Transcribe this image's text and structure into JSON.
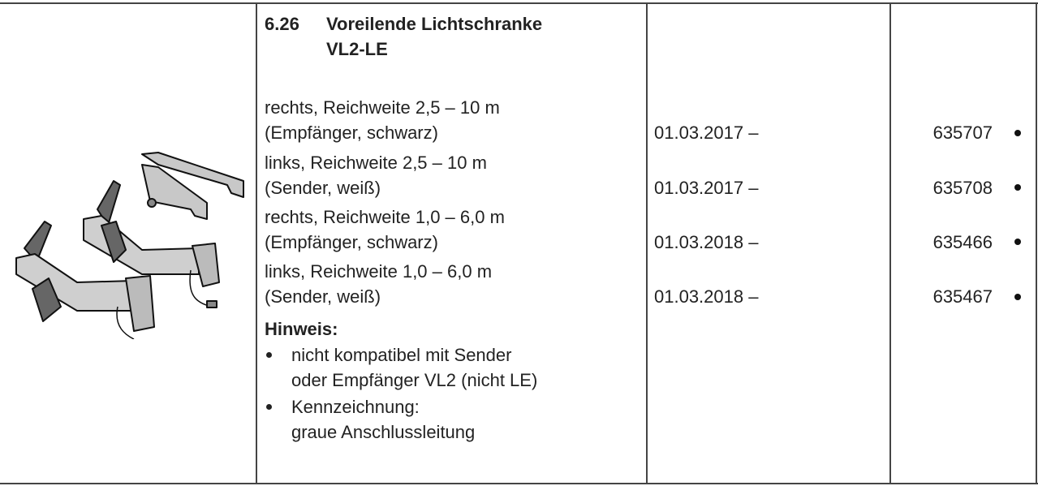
{
  "section": {
    "number": "6.26",
    "title_line1": "Voreilende Lichtschranke",
    "title_line2": "VL2-LE"
  },
  "items": [
    {
      "line1": "rechts, Reichweite 2,5 – 10 m",
      "line2": "(Empfänger, schwarz)",
      "date": "01.03.2017 –",
      "article": "635707"
    },
    {
      "line1": "links, Reichweite 2,5 – 10 m",
      "line2": "(Sender, weiß)",
      "date": "01.03.2017 –",
      "article": "635708"
    },
    {
      "line1": "rechts, Reichweite 1,0 – 6,0 m",
      "line2": "(Empfänger, schwarz)",
      "date": "01.03.2018 –",
      "article": "635466"
    },
    {
      "line1": "links, Reichweite 1,0 – 6,0 m",
      "line2": "(Sender, weiß)",
      "date": "01.03.2018 –",
      "article": "635467"
    }
  ],
  "note": {
    "heading": "Hinweis:",
    "bullets": [
      {
        "line1": "nicht kompatibel mit Sender",
        "line2": "oder Empfänger VL2 (nicht LE)"
      },
      {
        "line1": "Kennzeichnung:",
        "line2": "graue Anschlussleitung"
      }
    ]
  },
  "icons": {
    "product": "light-barrier-illustration",
    "availability": "bullet-dot"
  }
}
